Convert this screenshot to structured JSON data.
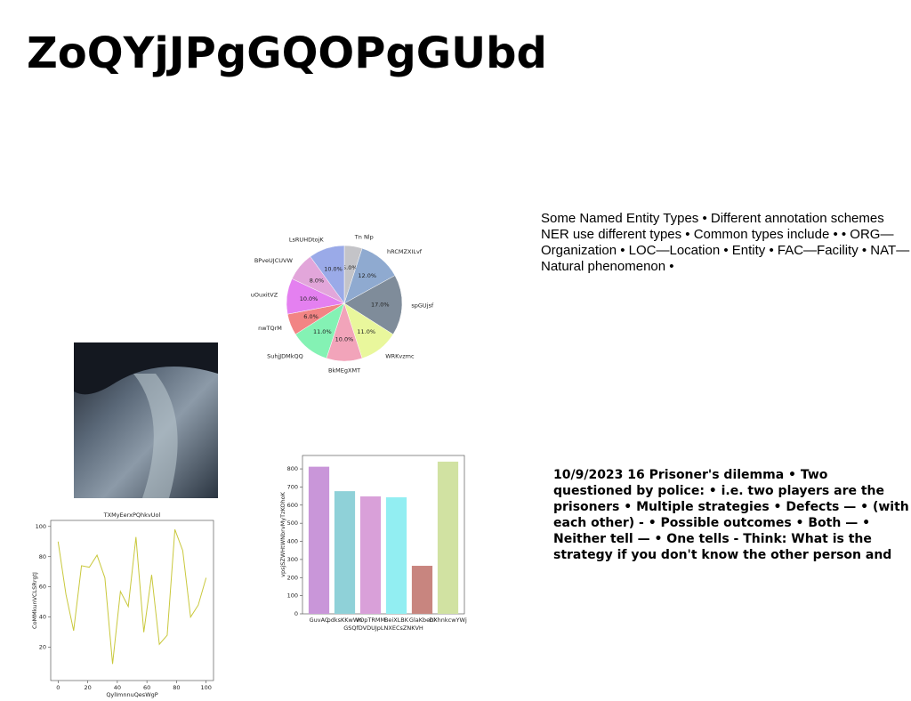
{
  "title": "ZoQYjJPgGQOPgGUbd",
  "text1": "Some Named Entity Types • Different annotation schemes NER use different types • Common types include • • ORG—Organization • LOC—Location • Entity • FAC—Facility • NAT—Natural phenomenon •",
  "text2": "10/9/2023 16 Prisoner's dilemma • Two questioned by police: • i.e. two players are the prisoners • Multiple strategies • Defects — • (with each other) - • Possible outcomes • Both — • Neither tell — • One tells - Think: What is the strategy if you don't know the other person and",
  "chart_data": [
    {
      "type": "pie",
      "categories": [
        "Tn Nlp",
        "hRCMZXILvf",
        "spGUjsf",
        "WRKvzmc",
        "BkMEgXMT",
        "SuhjJDMkQQ",
        "nwTQrM",
        "uOuxitVZ",
        "BPveUJCUVW",
        "LsRUHDtojK"
      ],
      "values": [
        5,
        12,
        17,
        11,
        10,
        11,
        6,
        10,
        8,
        10
      ],
      "value_labels": [
        "5.0%",
        "12.0%",
        "17.0%",
        "11.0%",
        "10.0%",
        "11.0%",
        "6.0%",
        "10.0%",
        "8.0%",
        "10.0%"
      ],
      "colors": [
        "#c4c4c8",
        "#8faad0",
        "#7f8c9a",
        "#e9f79c",
        "#f2a4ba",
        "#84f2b4",
        "#f28484",
        "#e480f0",
        "#e2a6da",
        "#9aaae8"
      ]
    },
    {
      "type": "line",
      "title": "TXMyEerxPQhkvUol",
      "xlabel": "QylImnnuQesWgP",
      "ylabel": "CoMMkunVCLSRrgtJ",
      "x": [
        0,
        5.3,
        10.5,
        15.8,
        21.1,
        26.3,
        31.6,
        36.8,
        42.1,
        47.4,
        52.6,
        57.9,
        63.2,
        68.4,
        73.7,
        78.9,
        84.2,
        89.5,
        94.7,
        100
      ],
      "values": [
        90,
        55,
        31,
        74,
        73,
        81,
        66,
        9,
        57,
        47,
        93,
        30,
        68,
        22,
        28,
        98,
        84,
        40,
        48,
        66
      ],
      "color": "#c9c83c",
      "xlim": [
        -5,
        105
      ],
      "ylim": [
        -2,
        104
      ],
      "xticks": [
        0,
        20,
        40,
        60,
        80,
        100
      ],
      "yticks": [
        20,
        40,
        60,
        80,
        100
      ]
    },
    {
      "type": "bar",
      "xlabel": "GSQfDVDUJpLNXECsZNKVH",
      "ylabel": "vpsjSZWHtWNbrvMyTzKOhoK",
      "categories": [
        "GuvAC",
        "pdksKKwWn",
        "VOpTRMM",
        "BeiXLBK",
        "GlaKbenl",
        "DXhnkcwYWj"
      ],
      "values": [
        812,
        677,
        648,
        643,
        265,
        840
      ],
      "colors": [
        "#c996d9",
        "#8fd1d8",
        "#d9a0d9",
        "#92eef2",
        "#c8857f",
        "#d1e2a2"
      ],
      "ylim": [
        0,
        874
      ],
      "yticks": [
        0,
        100,
        200,
        300,
        400,
        500,
        600,
        700,
        800
      ]
    }
  ]
}
